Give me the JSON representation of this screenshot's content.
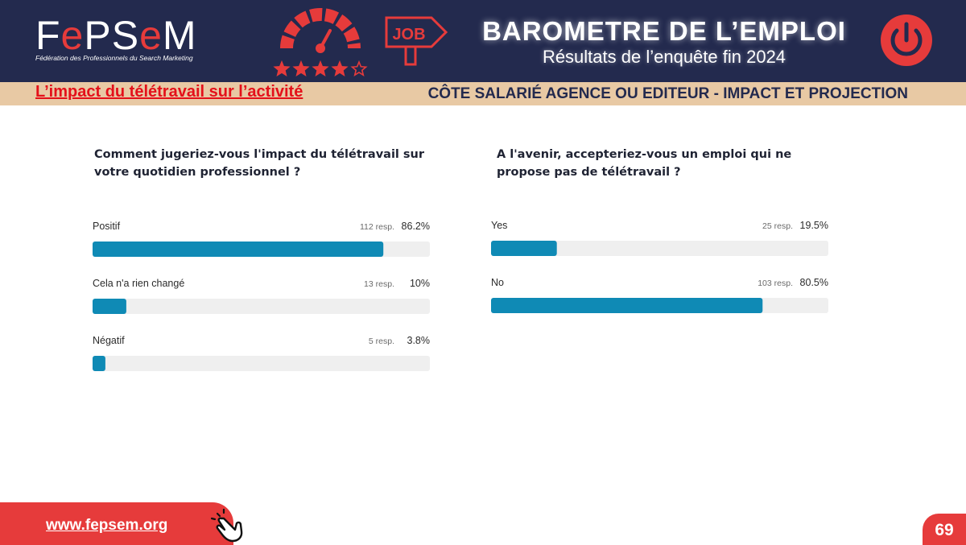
{
  "header": {
    "logo_text": "FePSeM",
    "logo_subtitle": "Fédération des Professionnels du Search Marketing",
    "sign_text": "JOB",
    "title": "BAROMETRE DE L’EMPLOI",
    "subtitle": "Résultats de l’enquête fin 2024",
    "rating_stars": 4,
    "rating_max": 5
  },
  "band": {
    "left": "L’impact du télétravail sur l’activité",
    "right": "CÔTE SALARIÉ AGENCE OU EDITEUR - IMPACT ET PROJECTION"
  },
  "questions": {
    "q1": "Comment jugeriez-vous l'impact du télétravail sur votre quotidien professionnel ?",
    "q2": "A l'avenir, accepteriez-vous un emploi qui ne propose pas de télétravail ?"
  },
  "colors": {
    "navy": "#232a4e",
    "red": "#e63b3b",
    "bar": "#0f8ab5",
    "track": "#efefef",
    "band": "#e8c9a4"
  },
  "chart_data": [
    {
      "type": "bar",
      "orientation": "horizontal",
      "categories": [
        "Positif",
        "Cela n'a rien changé",
        "Négatif"
      ],
      "values": [
        86.2,
        10,
        3.8
      ],
      "value_labels": [
        "86.2%",
        "10%",
        "3.8%"
      ],
      "responses": [
        "112 resp.",
        "13 resp.",
        "5 resp."
      ],
      "xlim": [
        0,
        100
      ]
    },
    {
      "type": "bar",
      "orientation": "horizontal",
      "categories": [
        "Yes",
        "No"
      ],
      "values": [
        19.5,
        80.5
      ],
      "value_labels": [
        "19.5%",
        "80.5%"
      ],
      "responses": [
        "25 resp.",
        "103 resp."
      ],
      "xlim": [
        0,
        100
      ]
    }
  ],
  "footer": {
    "link": "www.fepsem.org",
    "page_number": "69"
  }
}
